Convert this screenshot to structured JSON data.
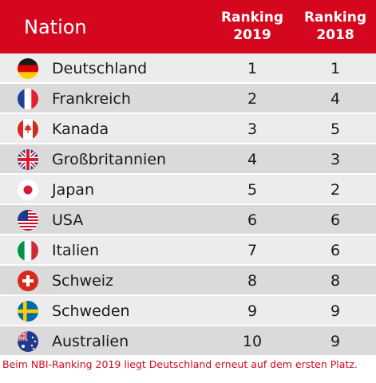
{
  "header": {
    "nation": "Nation",
    "col2019_line1": "Ranking",
    "col2019_line2": "2019",
    "col2018_line1": "Ranking",
    "col2018_line2": "2018"
  },
  "rows": [
    {
      "country": "Deutschland",
      "r2019": "1",
      "r2018": "1",
      "flag": "germany-flag"
    },
    {
      "country": "Frankreich",
      "r2019": "2",
      "r2018": "4",
      "flag": "france-flag"
    },
    {
      "country": "Kanada",
      "r2019": "3",
      "r2018": "5",
      "flag": "canada-flag"
    },
    {
      "country": "Großbritannien",
      "r2019": "4",
      "r2018": "3",
      "flag": "uk-flag"
    },
    {
      "country": "Japan",
      "r2019": "5",
      "r2018": "2",
      "flag": "japan-flag"
    },
    {
      "country": "USA",
      "r2019": "6",
      "r2018": "6",
      "flag": "usa-flag"
    },
    {
      "country": "Italien",
      "r2019": "7",
      "r2018": "6",
      "flag": "italy-flag"
    },
    {
      "country": "Schweiz",
      "r2019": "8",
      "r2018": "8",
      "flag": "switzerland-flag"
    },
    {
      "country": "Schweden",
      "r2019": "9",
      "r2018": "9",
      "flag": "sweden-flag"
    },
    {
      "country": "Australien",
      "r2019": "10",
      "r2018": "9",
      "flag": "australia-flag"
    }
  ],
  "caption": "Beim NBI-Ranking 2019 liegt Deutschland erneut auf dem ersten Platz.",
  "colors": {
    "accent": "#d5071e",
    "row_light": "#ececec",
    "row_dark": "#dadada"
  }
}
